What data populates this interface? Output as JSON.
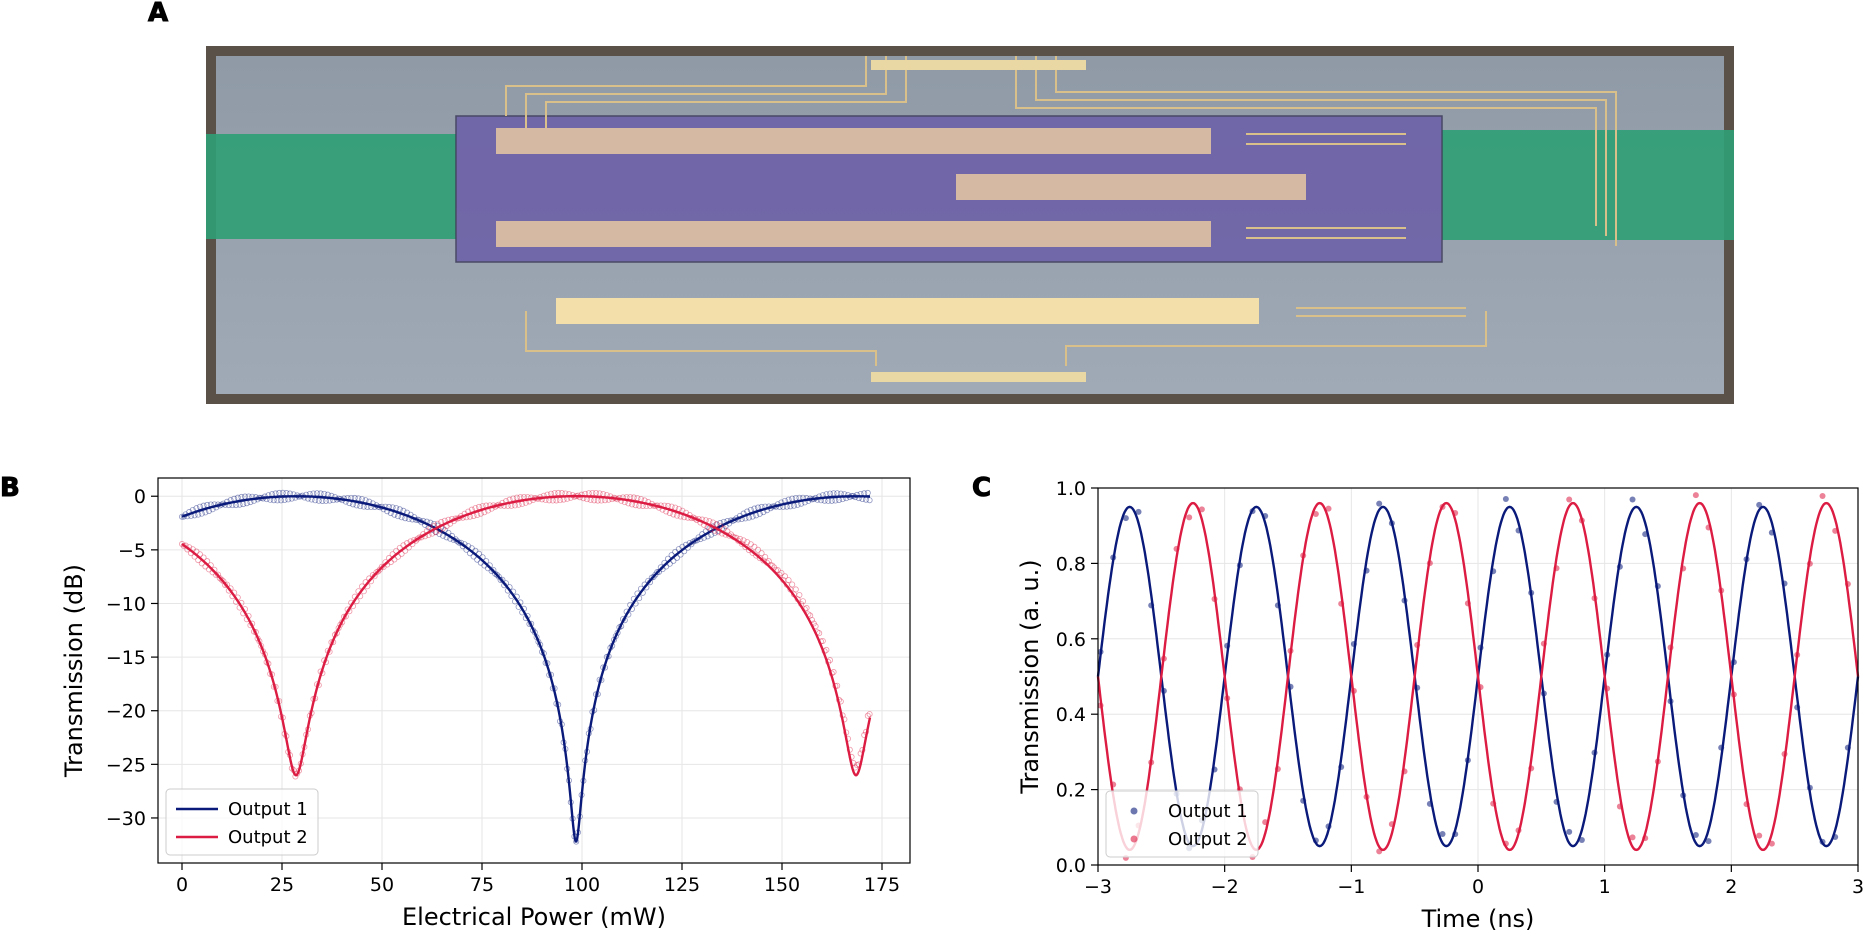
{
  "panels": {
    "a": "A",
    "b": "B",
    "c": "C"
  },
  "colors": {
    "output1": "#0a1a7a",
    "output2": "#dc1c42"
  },
  "chart_data": [
    {
      "id": "B",
      "type": "line",
      "title": "",
      "xlabel": "Electrical Power (mW)",
      "ylabel": "Transmission (dB)",
      "xlim": [
        -6,
        182
      ],
      "ylim": [
        -34.2,
        1.7
      ],
      "xticks": [
        0,
        25,
        50,
        75,
        100,
        125,
        150,
        175
      ],
      "yticks": [
        0,
        -5,
        -10,
        -15,
        -20,
        -25,
        -30
      ],
      "xtick_labels": [
        "0",
        "25",
        "50",
        "75",
        "100",
        "125",
        "150",
        "175"
      ],
      "ytick_labels": [
        "0",
        "−5",
        "−10",
        "−15",
        "−20",
        "−25",
        "−30"
      ],
      "grid": true,
      "legend_position": "lower-left",
      "series": [
        {
          "name": "Output 1",
          "color": "#0a1a7a",
          "min_at": 98.5,
          "min_db": -32.5,
          "x_range": [
            0,
            172
          ]
        },
        {
          "name": "Output 2",
          "color": "#dc1c42",
          "min_at": [
            28.5,
            159.5
          ],
          "min_db": [
            -26.5,
            -26.8
          ],
          "x_range": [
            0,
            172
          ]
        }
      ]
    },
    {
      "id": "C",
      "type": "line",
      "title": "",
      "xlabel": "Time (ns)",
      "ylabel": "Transmission (a. u.)",
      "xlim": [
        -3,
        3
      ],
      "ylim": [
        0,
        1
      ],
      "xticks": [
        -3,
        -2,
        -1,
        0,
        1,
        2,
        3
      ],
      "yticks": [
        0,
        0.2,
        0.4,
        0.6,
        0.8,
        1.0
      ],
      "xtick_labels": [
        "−3",
        "−2",
        "−1",
        "0",
        "1",
        "2",
        "3"
      ],
      "ytick_labels": [
        "0.0",
        "0.2",
        "0.4",
        "0.6",
        "0.8",
        "1.0"
      ],
      "grid": true,
      "legend_position": "lower-left",
      "series": [
        {
          "name": "Output 1",
          "color": "#0a1a7a",
          "peak_times": [
            -2.75,
            -1.75,
            -0.75,
            0.25,
            1.25,
            2.25
          ],
          "trough_times": [
            -2.25,
            -1.25,
            -0.25,
            0.75,
            1.75,
            2.75
          ],
          "max": 0.95,
          "min": 0.05
        },
        {
          "name": "Output 2",
          "color": "#dc1c42",
          "peak_times": [
            -2.25,
            -1.25,
            -0.25,
            0.75,
            1.75,
            2.75
          ],
          "trough_times": [
            -2.75,
            -1.75,
            -0.75,
            0.25,
            1.25,
            2.25
          ],
          "max": 0.96,
          "min": 0.04
        }
      ]
    }
  ]
}
